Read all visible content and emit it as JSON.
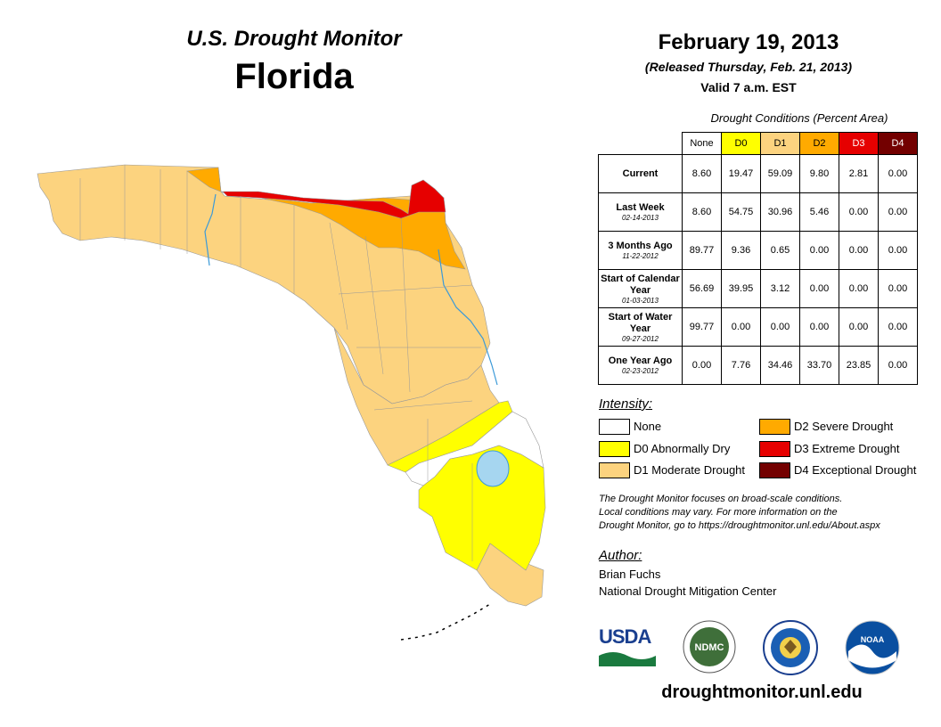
{
  "header": {
    "subtitle": "U.S. Drought Monitor",
    "state": "Florida",
    "date": "February 19, 2013",
    "released": "(Released Thursday, Feb. 21, 2013)",
    "valid": "Valid 7 a.m. EST"
  },
  "table": {
    "caption": "Drought Conditions (Percent Area)",
    "columns": [
      "None",
      "D0",
      "D1",
      "D2",
      "D3",
      "D4"
    ],
    "rows": [
      {
        "label": "Current",
        "sub": "",
        "values": [
          "8.60",
          "19.47",
          "59.09",
          "9.80",
          "2.81",
          "0.00"
        ]
      },
      {
        "label": "Last Week",
        "sub": "02-14-2013",
        "values": [
          "8.60",
          "54.75",
          "30.96",
          "5.46",
          "0.00",
          "0.00"
        ]
      },
      {
        "label": "3 Months Ago",
        "sub": "11-22-2012",
        "values": [
          "89.77",
          "9.36",
          "0.65",
          "0.00",
          "0.00",
          "0.00"
        ]
      },
      {
        "label": "Start of Calendar Year",
        "sub": "01-03-2013",
        "values": [
          "56.69",
          "39.95",
          "3.12",
          "0.00",
          "0.00",
          "0.00"
        ]
      },
      {
        "label": "Start of Water Year",
        "sub": "09-27-2012",
        "values": [
          "99.77",
          "0.00",
          "0.00",
          "0.00",
          "0.00",
          "0.00"
        ]
      },
      {
        "label": "One Year Ago",
        "sub": "02-23-2012",
        "values": [
          "0.00",
          "7.76",
          "34.46",
          "33.70",
          "23.85",
          "0.00"
        ]
      }
    ]
  },
  "legend": {
    "title": "Intensity:",
    "items": [
      {
        "label": "None",
        "color": "#ffffff"
      },
      {
        "label": "D0 Abnormally Dry",
        "color": "#ffff00"
      },
      {
        "label": "D1 Moderate Drought",
        "color": "#fcd37f"
      },
      {
        "label": "D2 Severe Drought",
        "color": "#ffaa00"
      },
      {
        "label": "D3 Extreme Drought",
        "color": "#e60000"
      },
      {
        "label": "D4 Exceptional Drought",
        "color": "#730000"
      }
    ]
  },
  "note": {
    "line1": "The Drought Monitor focuses on broad-scale conditions.",
    "line2": "Local conditions may vary. For more information on the",
    "line3": "Drought Monitor, go to https://droughtmonitor.unl.edu/About.aspx"
  },
  "author": {
    "title": "Author:",
    "name": "Brian Fuchs",
    "org": "National Drought Mitigation Center"
  },
  "logos": {
    "usda": "USDA",
    "ndmc": "NDMC",
    "noaa": "NOAA",
    "commerce_icon": "department-of-commerce-seal-icon"
  },
  "url": "droughtmonitor.unl.edu",
  "colors": {
    "none": "#ffffff",
    "d0": "#ffff00",
    "d1": "#fcd37f",
    "d2": "#ffaa00",
    "d3": "#e60000",
    "d4": "#730000",
    "water": "#a6d6f0",
    "river": "#3c9ad8"
  }
}
